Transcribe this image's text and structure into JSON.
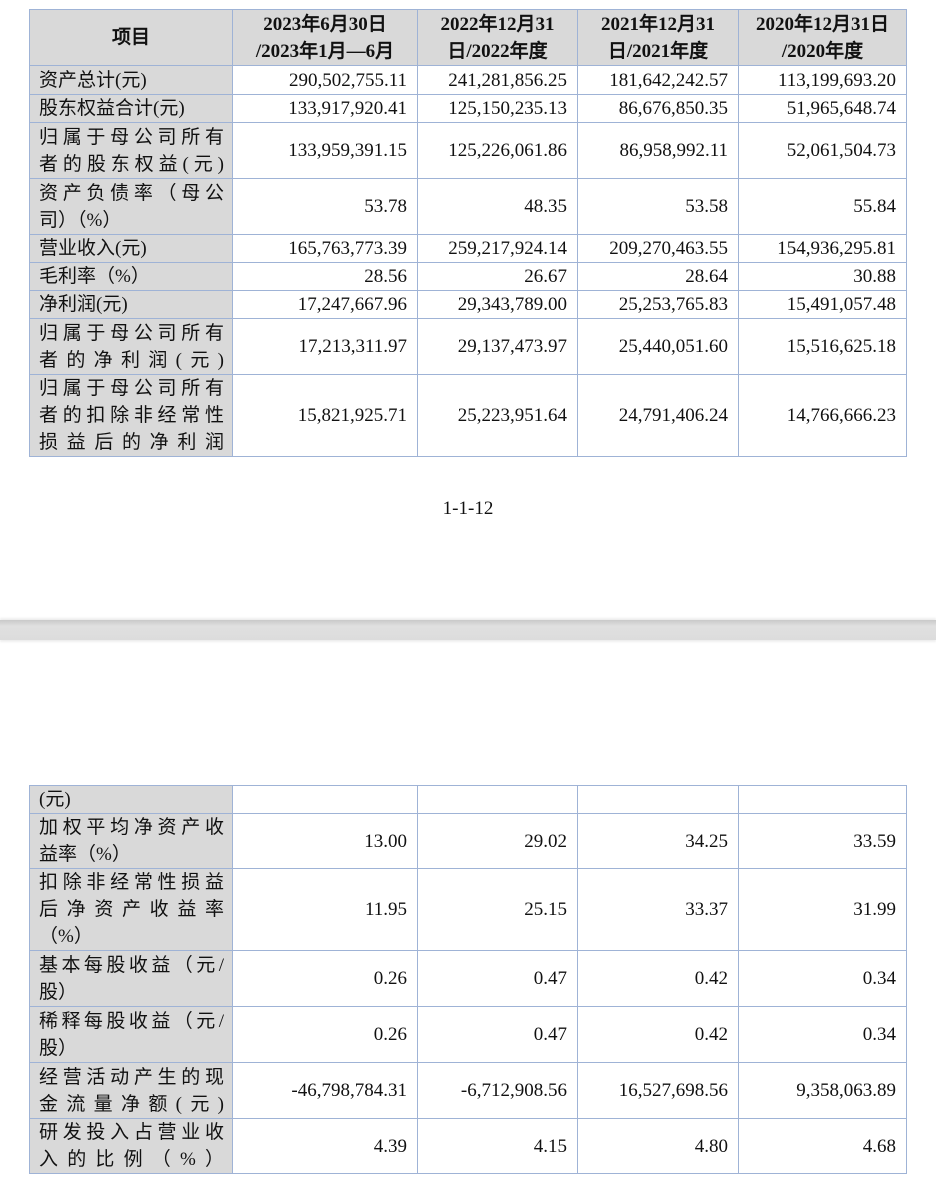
{
  "header": {
    "item": "项目",
    "columns": [
      [
        "2023年6月30日",
        "/2023年1月—6月"
      ],
      [
        "2022年12月31",
        "日/2022年度"
      ],
      [
        "2021年12月31",
        "日/2021年度"
      ],
      [
        "2020年12月31日",
        "/2020年度"
      ]
    ]
  },
  "table1_rows": [
    {
      "label": [
        "资产总计(元)"
      ],
      "values": [
        "290,502,755.11",
        "241,281,856.25",
        "181,642,242.57",
        "113,199,693.20"
      ]
    },
    {
      "label": [
        "股东权益合计(元)"
      ],
      "values": [
        "133,917,920.41",
        "125,150,235.13",
        "86,676,850.35",
        "51,965,648.74"
      ]
    },
    {
      "label": [
        "归属于母公司所有",
        "者的股东权益(元)"
      ],
      "values": [
        "133,959,391.15",
        "125,226,061.86",
        "86,958,992.11",
        "52,061,504.73"
      ]
    },
    {
      "label": [
        "资产负债率（母公",
        "司）（%）"
      ],
      "values": [
        "53.78",
        "48.35",
        "53.58",
        "55.84"
      ]
    },
    {
      "label": [
        "营业收入(元)"
      ],
      "values": [
        "165,763,773.39",
        "259,217,924.14",
        "209,270,463.55",
        "154,936,295.81"
      ]
    },
    {
      "label": [
        "毛利率（%）"
      ],
      "values": [
        "28.56",
        "26.67",
        "28.64",
        "30.88"
      ]
    },
    {
      "label": [
        "净利润(元)"
      ],
      "values": [
        "17,247,667.96",
        "29,343,789.00",
        "25,253,765.83",
        "15,491,057.48"
      ]
    },
    {
      "label": [
        "归属于母公司所有",
        "者的净利润(元)"
      ],
      "values": [
        "17,213,311.97",
        "29,137,473.97",
        "25,440,051.60",
        "15,516,625.18"
      ]
    },
    {
      "label": [
        "归属于母公司所有",
        "者的扣除非经常性",
        "损益后的净利润"
      ],
      "values": [
        "15,821,925.71",
        "25,223,951.64",
        "24,791,406.24",
        "14,766,666.23"
      ]
    }
  ],
  "page_number": "1-1-12",
  "table2_rows": [
    {
      "label": [
        "(元)"
      ],
      "values": [
        "",
        "",
        "",
        ""
      ]
    },
    {
      "label": [
        "加权平均净资产收",
        "益率（%）"
      ],
      "values": [
        "13.00",
        "29.02",
        "34.25",
        "33.59"
      ]
    },
    {
      "label": [
        "扣除非经常性损益",
        "后净资产收益率",
        "（%）"
      ],
      "values": [
        "11.95",
        "25.15",
        "33.37",
        "31.99"
      ]
    },
    {
      "label": [
        "基本每股收益（元/",
        "股）"
      ],
      "values": [
        "0.26",
        "0.47",
        "0.42",
        "0.34"
      ]
    },
    {
      "label": [
        "稀释每股收益（元/",
        "股）"
      ],
      "values": [
        "0.26",
        "0.47",
        "0.42",
        "0.34"
      ]
    },
    {
      "label": [
        "经营活动产生的现",
        "金流量净额(元)"
      ],
      "values": [
        "-46,798,784.31",
        "-6,712,908.56",
        "16,527,698.56",
        "9,358,063.89"
      ]
    },
    {
      "label": [
        "研发投入占营业收",
        "入的比例（%）"
      ],
      "values": [
        "4.39",
        "4.15",
        "4.80",
        "4.68"
      ]
    }
  ]
}
